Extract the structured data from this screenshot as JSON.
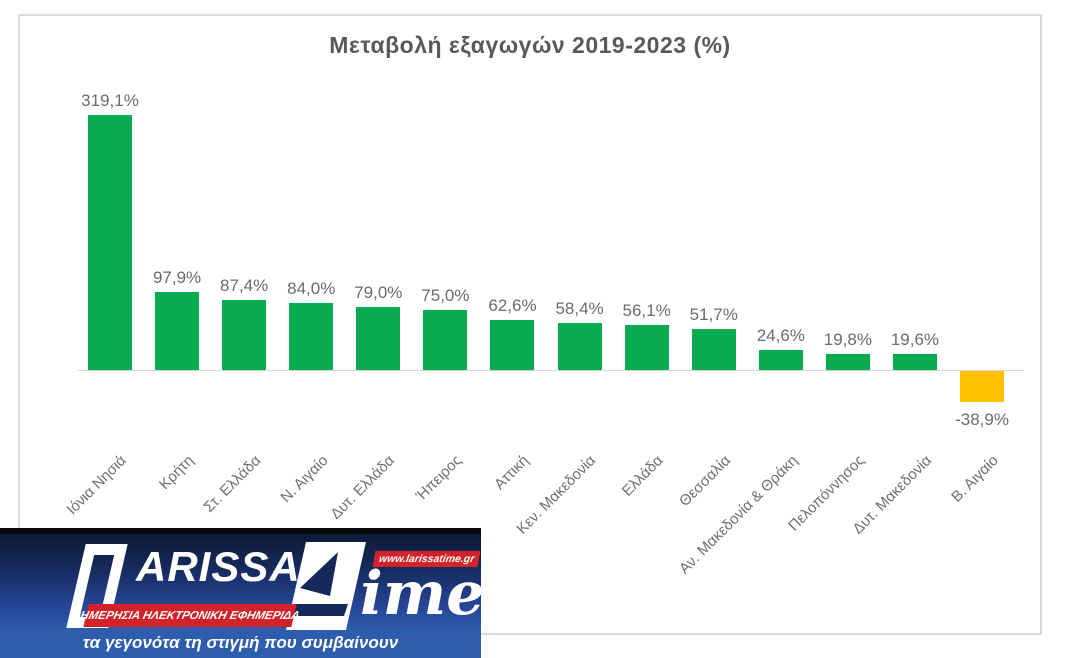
{
  "chart_data": {
    "type": "bar",
    "title": "Μεταβολή εξαγωγών 2019-2023 (%)",
    "categories": [
      "Ιόνια Νησιά",
      "Κρήτη",
      "Στ. Ελλάδα",
      "Ν. Αιγαίο",
      "Δυτ. Ελλάδα",
      "Ήπειρος",
      "Αττική",
      "Κεν. Μακεδονία",
      "Ελλάδα",
      "Θεσσαλία",
      "Αν. Μακεδονία & Θράκη",
      "Πελοπόννησος",
      "Δυτ. Μακεδονία",
      "Β. Αιγαίο"
    ],
    "values": [
      319.1,
      97.9,
      87.4,
      84.0,
      79.0,
      75.0,
      62.6,
      58.4,
      56.1,
      51.7,
      24.6,
      19.8,
      19.6,
      -38.9
    ],
    "value_labels": [
      "319,1%",
      "97,9%",
      "87,4%",
      "84,0%",
      "79,0%",
      "75,0%",
      "62,6%",
      "58,4%",
      "56,1%",
      "51,7%",
      "24,6%",
      "19,8%",
      "19,6%",
      "-38,9%"
    ],
    "xlabel": "",
    "ylabel": "",
    "ylim": [
      -60,
      340
    ],
    "grid": false,
    "legend": false,
    "positive_color": "#09AB50",
    "negative_color": "#FFC000",
    "axis_color": "#D5D5D5",
    "label_color": "#6B6B6B",
    "title_color": "#595959"
  },
  "watermark": {
    "brand_l": "L",
    "brand_name_rest": "ARISSA",
    "brand_time_rest": "ime",
    "url_badge": "www.larissatime.gr",
    "banner": "ΗΜΕΡΗΣΙΑ ΗΛΕΚΤΡΟΝΙΚΗ ΕΦΗΜΕΡΙΔΑ",
    "tagline": "τα γεγονότα τη στιγμή που συμβαίνουν",
    "red": "#D2232A",
    "blue_dark": "#0C1A36",
    "blue_mid": "#27479A",
    "blue_strip": "#2E5DAD"
  }
}
